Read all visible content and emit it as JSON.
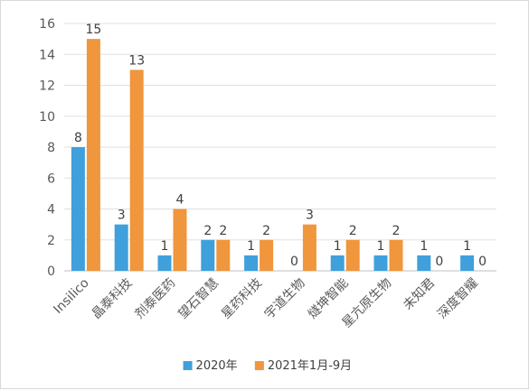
{
  "chart_data": {
    "type": "bar",
    "categories": [
      "Insilico",
      "晶泰科技",
      "剂泰医药",
      "望石智慧",
      "星药科技",
      "宇道生物",
      "燧坤智能",
      "星亢原生物",
      "未知君",
      "深度智耀"
    ],
    "series": [
      {
        "name": "2020年",
        "color": "#3fa0dc",
        "values": [
          8,
          3,
          1,
          2,
          1,
          0,
          1,
          1,
          1,
          1
        ]
      },
      {
        "name": "2021年1月-9月",
        "color": "#f0963c",
        "values": [
          15,
          13,
          4,
          2,
          2,
          3,
          2,
          2,
          0,
          0
        ]
      }
    ],
    "ylim": [
      0,
      16
    ],
    "yticks": [
      0,
      2,
      4,
      6,
      8,
      10,
      12,
      14,
      16
    ],
    "grid": true,
    "legend": "bottom"
  }
}
